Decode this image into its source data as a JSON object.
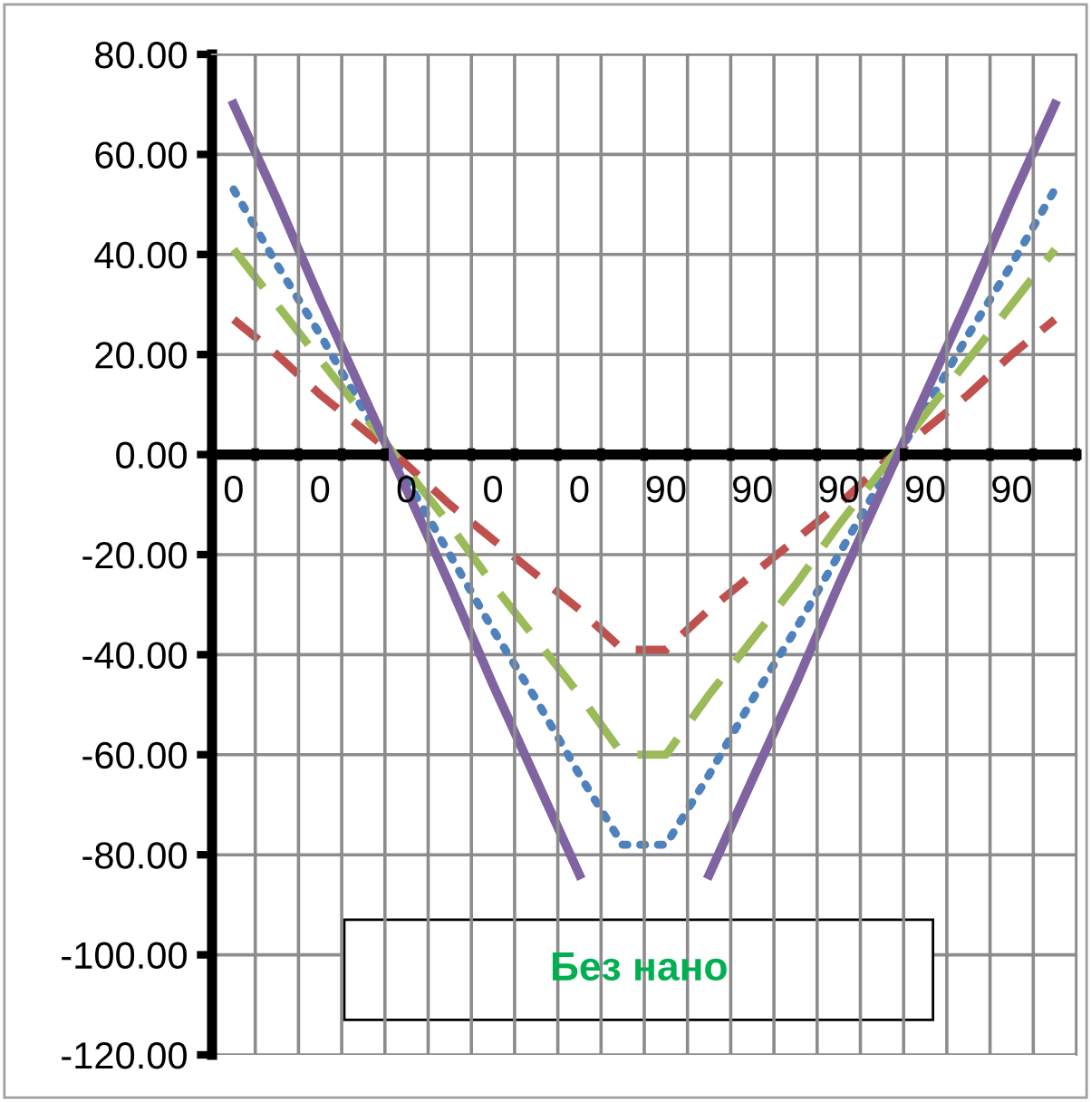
{
  "chart_data": {
    "type": "line",
    "categories": [
      "0",
      null,
      "0",
      null,
      "0",
      null,
      "0",
      null,
      "0",
      null,
      "90",
      null,
      "90",
      null,
      "90",
      null,
      "90",
      null,
      "90",
      null
    ],
    "series": [
      {
        "color": "#4f81bd",
        "line_style": "dotted",
        "values": [
          53,
          38,
          24,
          9,
          -5,
          -20,
          -35,
          -49,
          -64,
          -78,
          -78,
          -64,
          -49,
          -35,
          -20,
          -5,
          9,
          24,
          38,
          53
        ]
      },
      {
        "color": "#c0504d",
        "line_style": "dashed",
        "values": [
          27,
          20,
          12,
          5,
          -2,
          -10,
          -17,
          -24,
          -31,
          -39,
          -39,
          -31,
          -24,
          -17,
          -10,
          -2,
          5,
          12,
          20,
          27
        ]
      },
      {
        "color": "#9bbb59",
        "line_style": "dashed",
        "values": [
          41,
          30,
          19,
          8,
          -3,
          -14,
          -26,
          -37,
          -48,
          -60,
          -60,
          -48,
          -37,
          -26,
          -14,
          -3,
          8,
          19,
          30,
          41
        ]
      },
      {
        "color": "#8064a2",
        "line_style": "solid",
        "values": [
          70,
          51,
          31,
          12,
          -7,
          -26,
          -46,
          -65,
          -84,
          null,
          null,
          -84,
          -65,
          -46,
          -26,
          -7,
          12,
          31,
          51,
          70
        ]
      }
    ],
    "ylim": [
      -120,
      80
    ],
    "yticks": [
      {
        "value": -120,
        "label": "-120.00"
      },
      {
        "value": -100,
        "label": "-100.00"
      },
      {
        "value": -80,
        "label": "-80.00"
      },
      {
        "value": -60,
        "label": "-60.00"
      },
      {
        "value": -40,
        "label": "-40.00"
      },
      {
        "value": -20,
        "label": "-20.00"
      },
      {
        "value": 0,
        "label": "0.00"
      },
      {
        "value": 20,
        "label": "20.00"
      },
      {
        "value": 40,
        "label": "40.00"
      },
      {
        "value": 60,
        "label": "60.00"
      },
      {
        "value": 80,
        "label": "80.00"
      }
    ],
    "grid": true,
    "annotations": [
      "Без нано"
    ]
  }
}
